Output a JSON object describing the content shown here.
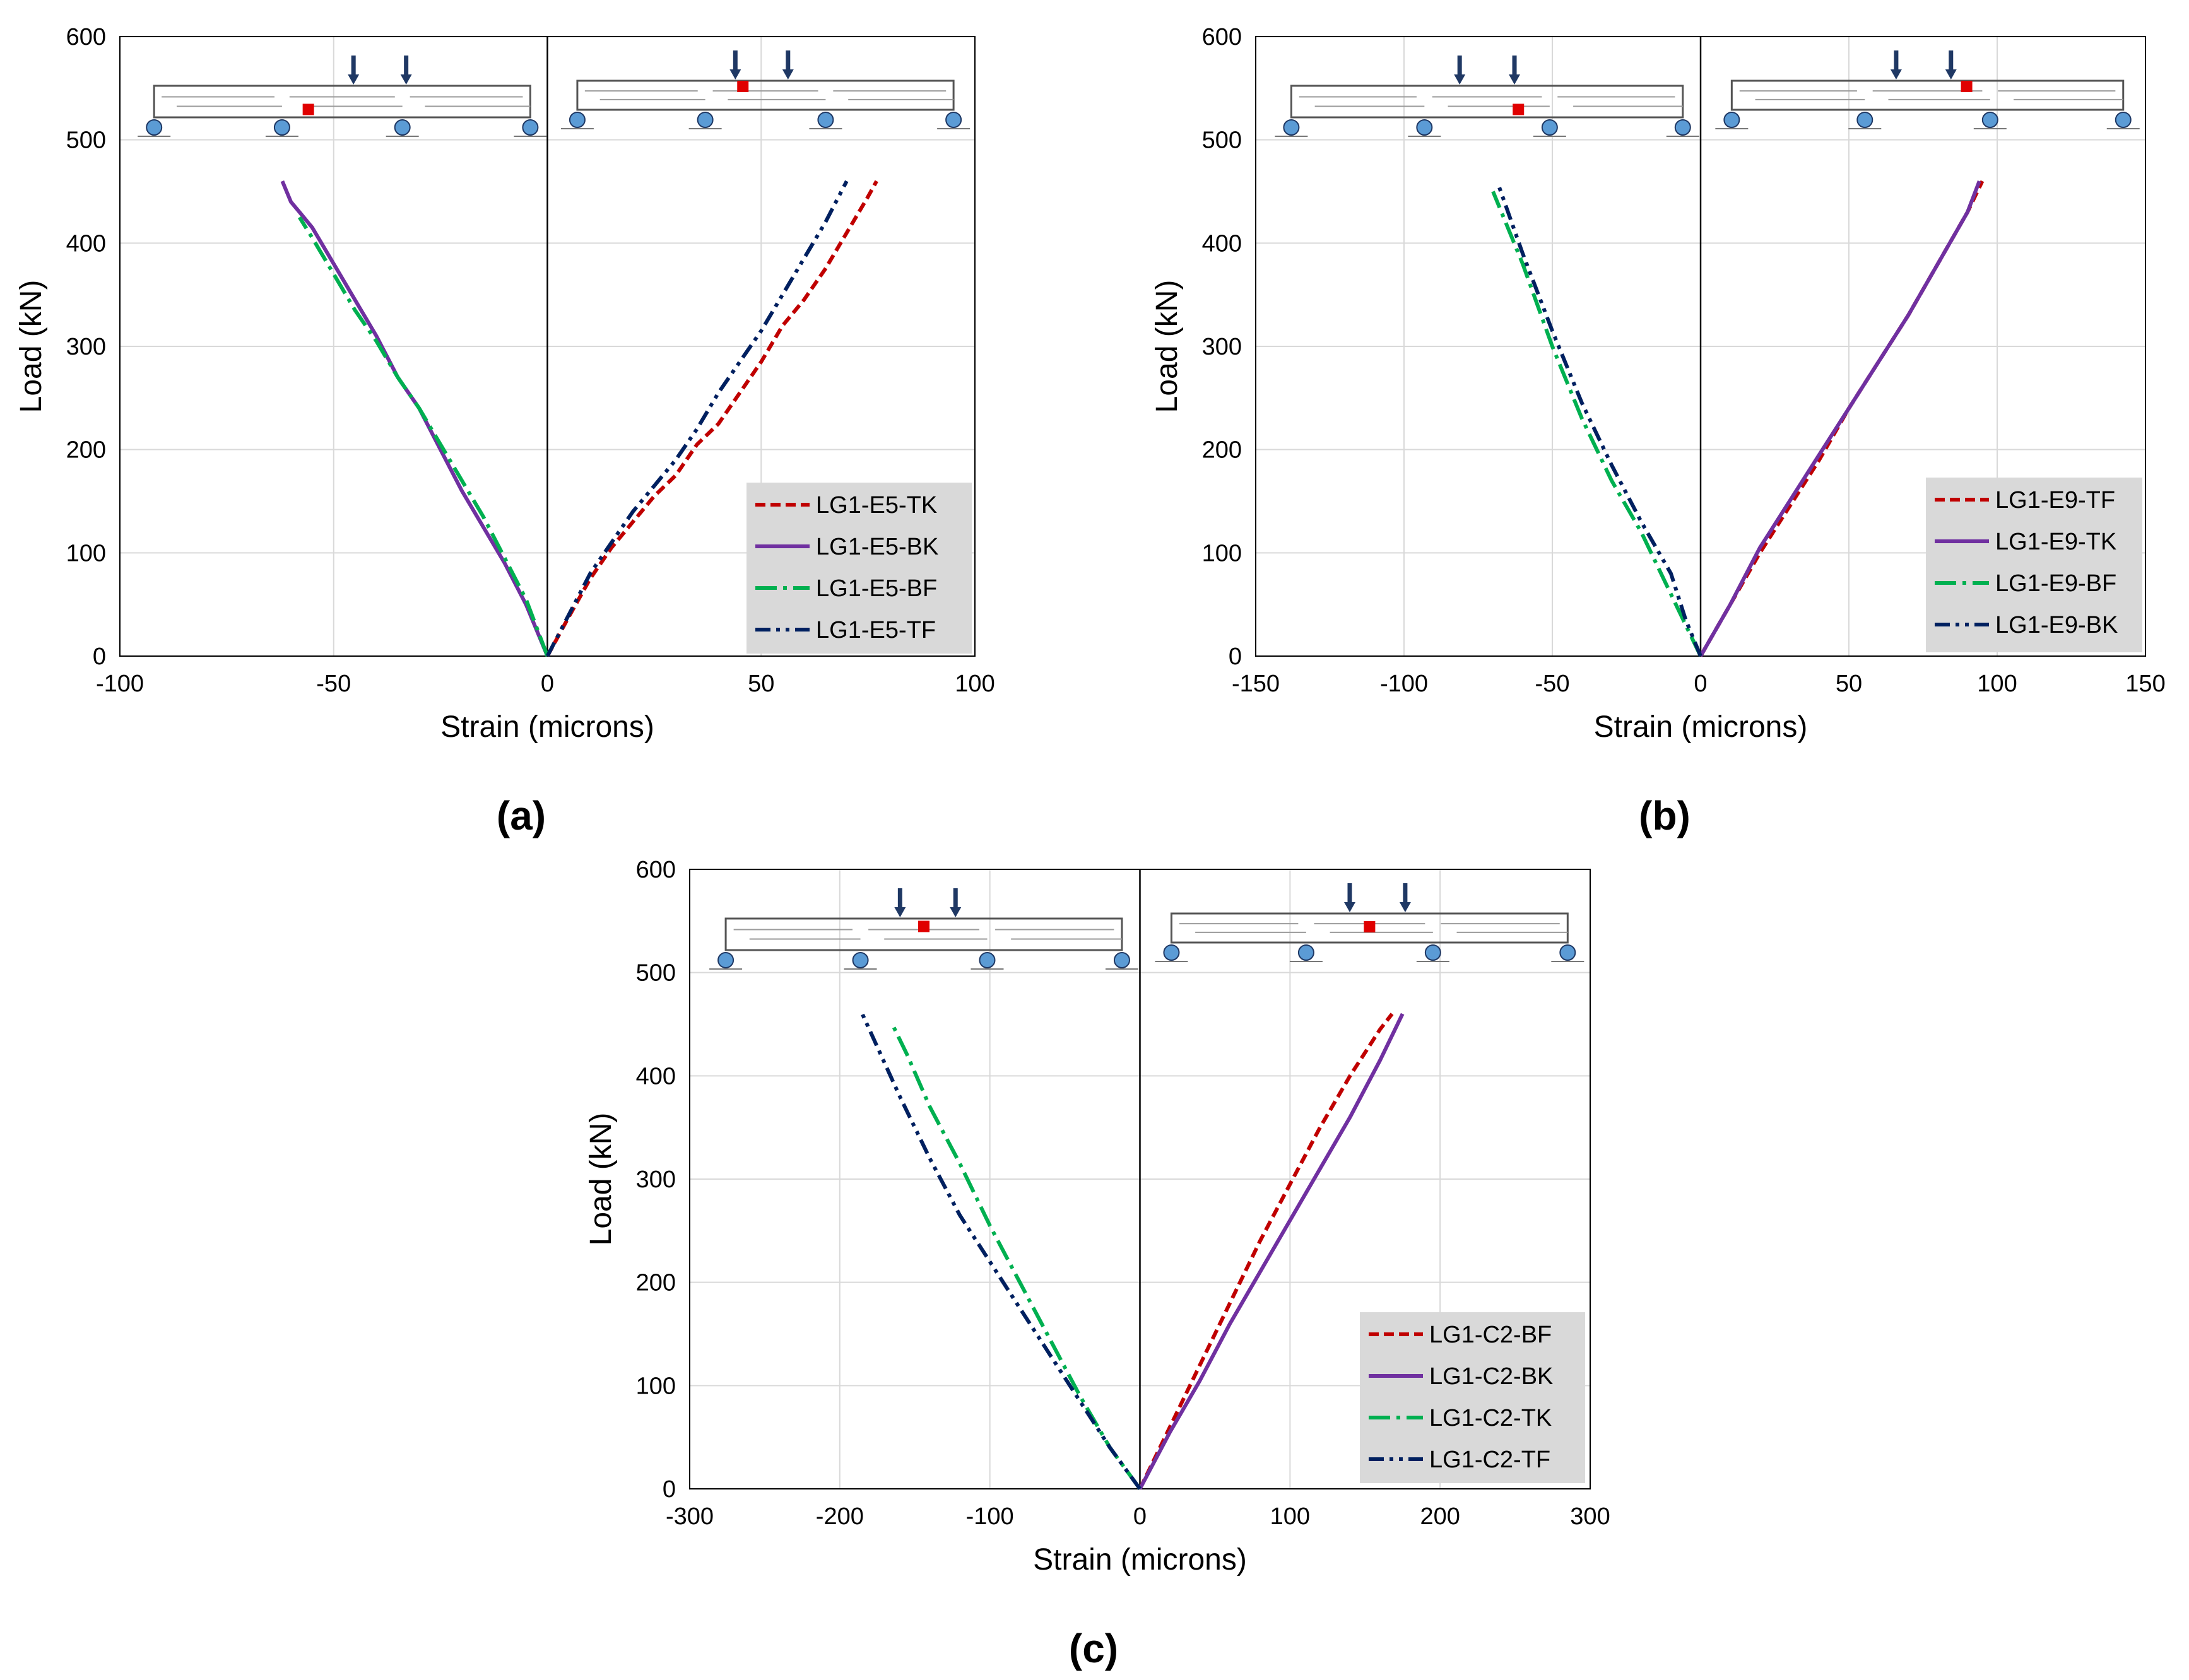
{
  "colors": {
    "tk_red": "#C00000",
    "bk_purple": "#7030A0",
    "bf_green": "#00B050",
    "tf_navy": "#002060",
    "axis": "#000000",
    "grid": "#D9D9D9",
    "legend_bg": "#D9D9D9",
    "beam_line": "#555555",
    "support": "#5B9BD5",
    "load_arrow": "#1F3864",
    "gauge": "#E00000"
  },
  "chart_data": [
    {
      "type": "line",
      "caption": "(a)",
      "xlabel": "Strain (microns)",
      "ylabel": "Load (kN)",
      "xlim": [
        -100,
        100
      ],
      "ylim": [
        0,
        600
      ],
      "xticks": [
        -100,
        -50,
        0,
        50,
        100
      ],
      "yticks": [
        0,
        100,
        200,
        300,
        400,
        500,
        600
      ],
      "xtick_labels": [
        "-100",
        "-50",
        "0",
        "50",
        "100"
      ],
      "ytick_labels": [
        "0",
        "100",
        "200",
        "300",
        "400",
        "500",
        "600"
      ],
      "grid": true,
      "legend_position": "bottom-right",
      "series": [
        {
          "name": "LG1-E5-TK",
          "style": "dash",
          "color": "#C00000",
          "x": [
            0,
            5,
            10,
            15,
            20,
            25,
            30,
            35,
            40,
            45,
            50,
            55,
            60,
            65,
            70,
            75,
            77
          ],
          "y": [
            0,
            38,
            75,
            105,
            130,
            155,
            175,
            205,
            225,
            255,
            285,
            320,
            345,
            375,
            410,
            445,
            460
          ]
        },
        {
          "name": "LG1-E5-BK",
          "style": "solid",
          "color": "#7030A0",
          "x": [
            0,
            -5,
            -10,
            -15,
            -20,
            -25,
            -30,
            -35,
            -40,
            -45,
            -50,
            -55,
            -58,
            -60,
            -62
          ],
          "y": [
            0,
            50,
            90,
            125,
            160,
            200,
            240,
            270,
            310,
            345,
            380,
            415,
            430,
            440,
            460
          ]
        },
        {
          "name": "LG1-E5-BF",
          "style": "dash-dot",
          "color": "#00B050",
          "x": [
            0,
            -5,
            -10,
            -15,
            -20,
            -25,
            -30,
            -35,
            -40,
            -45,
            -50,
            -55,
            -58
          ],
          "y": [
            0,
            55,
            95,
            135,
            170,
            205,
            240,
            270,
            305,
            335,
            370,
            405,
            425
          ]
        },
        {
          "name": "LG1-E5-TF",
          "style": "dash-dot-dot",
          "color": "#002060",
          "x": [
            0,
            5,
            10,
            15,
            20,
            25,
            30,
            35,
            40,
            45,
            50,
            55,
            60,
            65,
            70
          ],
          "y": [
            0,
            40,
            80,
            110,
            140,
            165,
            190,
            220,
            255,
            285,
            315,
            350,
            385,
            420,
            460
          ]
        }
      ],
      "legend_labels": [
        "LG1-E5-TK",
        "LG1-E5-BK",
        "LG1-E5-BF",
        "LG1-E5-TF"
      ]
    },
    {
      "type": "line",
      "caption": "(b)",
      "xlabel": "Strain (microns)",
      "ylabel": "Load (kN)",
      "xlim": [
        -150,
        150
      ],
      "ylim": [
        0,
        600
      ],
      "xticks": [
        -150,
        -100,
        -50,
        0,
        50,
        100,
        150
      ],
      "yticks": [
        0,
        100,
        200,
        300,
        400,
        500,
        600
      ],
      "xtick_labels": [
        "-150",
        "-100",
        "-50",
        "0",
        "50",
        "100",
        "150"
      ],
      "ytick_labels": [
        "0",
        "100",
        "200",
        "300",
        "400",
        "500",
        "600"
      ],
      "grid": true,
      "legend_position": "bottom-right",
      "series": [
        {
          "name": "LG1-E9-TF",
          "style": "dash",
          "color": "#C00000",
          "x": [
            0,
            10,
            20,
            30,
            40,
            50,
            60,
            70,
            80,
            90,
            95
          ],
          "y": [
            0,
            50,
            100,
            145,
            190,
            240,
            285,
            330,
            380,
            430,
            460
          ]
        },
        {
          "name": "LG1-E9-TK",
          "style": "solid",
          "color": "#7030A0",
          "x": [
            0,
            10,
            20,
            30,
            40,
            50,
            60,
            70,
            80,
            90,
            94
          ],
          "y": [
            0,
            50,
            105,
            150,
            195,
            240,
            285,
            330,
            380,
            430,
            460
          ]
        },
        {
          "name": "LG1-E9-BF",
          "style": "dash-dot",
          "color": "#00B050",
          "x": [
            0,
            -5,
            -10,
            -20,
            -30,
            -40,
            -50,
            -60,
            -70
          ],
          "y": [
            0,
            30,
            60,
            120,
            170,
            230,
            300,
            380,
            450
          ]
        },
        {
          "name": "LG1-E9-BK",
          "style": "dash-dot-dot",
          "color": "#002060",
          "x": [
            0,
            -5,
            -10,
            -20,
            -30,
            -40,
            -50,
            -60,
            -68
          ],
          "y": [
            0,
            35,
            80,
            130,
            185,
            245,
            315,
            390,
            455
          ]
        }
      ],
      "legend_labels": [
        "LG1-E9-TF",
        "LG1-E9-TK",
        "LG1-E9-BF",
        "LG1-E9-BK"
      ]
    },
    {
      "type": "line",
      "caption": "(c)",
      "xlabel": "Strain (microns)",
      "ylabel": "Load (kN)",
      "xlim": [
        -300,
        300
      ],
      "ylim": [
        0,
        600
      ],
      "xticks": [
        -300,
        -200,
        -100,
        0,
        100,
        200,
        300
      ],
      "yticks": [
        0,
        100,
        200,
        300,
        400,
        500,
        600
      ],
      "xtick_labels": [
        "-300",
        "-200",
        "-100",
        "0",
        "100",
        "200",
        "300"
      ],
      "ytick_labels": [
        "0",
        "100",
        "200",
        "300",
        "400",
        "500",
        "600"
      ],
      "grid": true,
      "legend_position": "bottom-right",
      "series": [
        {
          "name": "LG1-C2-BF",
          "style": "dash",
          "color": "#C00000",
          "x": [
            0,
            20,
            40,
            60,
            80,
            100,
            120,
            140,
            160,
            168
          ],
          "y": [
            0,
            60,
            120,
            180,
            240,
            295,
            350,
            400,
            445,
            460
          ]
        },
        {
          "name": "LG1-C2-BK",
          "style": "solid",
          "color": "#7030A0",
          "x": [
            0,
            20,
            40,
            60,
            80,
            100,
            120,
            140,
            160,
            175
          ],
          "y": [
            0,
            55,
            105,
            160,
            210,
            260,
            310,
            360,
            415,
            460
          ]
        },
        {
          "name": "LG1-C2-TK",
          "style": "dash-dot",
          "color": "#00B050",
          "x": [
            0,
            -20,
            -40,
            -60,
            -80,
            -100,
            -120,
            -140,
            -155,
            -165
          ],
          "y": [
            0,
            40,
            90,
            145,
            200,
            255,
            315,
            370,
            420,
            450
          ]
        },
        {
          "name": "LG1-C2-TF",
          "style": "dash-dot-dot",
          "color": "#002060",
          "x": [
            0,
            -20,
            -40,
            -60,
            -80,
            -100,
            -120,
            -140,
            -160,
            -185
          ],
          "y": [
            0,
            40,
            85,
            130,
            175,
            220,
            265,
            320,
            380,
            460
          ]
        }
      ],
      "legend_labels": [
        "LG1-C2-BF",
        "LG1-C2-BK",
        "LG1-C2-TK",
        "LG1-C2-TF"
      ]
    }
  ]
}
